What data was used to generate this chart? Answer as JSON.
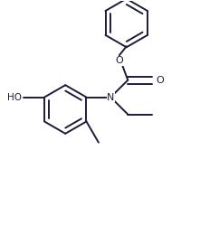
{
  "bg_color": "#ffffff",
  "bond_color": "#1c1c3a",
  "line_width": 1.4,
  "figsize": [
    2.21,
    2.49
  ],
  "dpi": 100,
  "xlim": [
    0,
    2.21
  ],
  "ylim": [
    0,
    2.49
  ]
}
